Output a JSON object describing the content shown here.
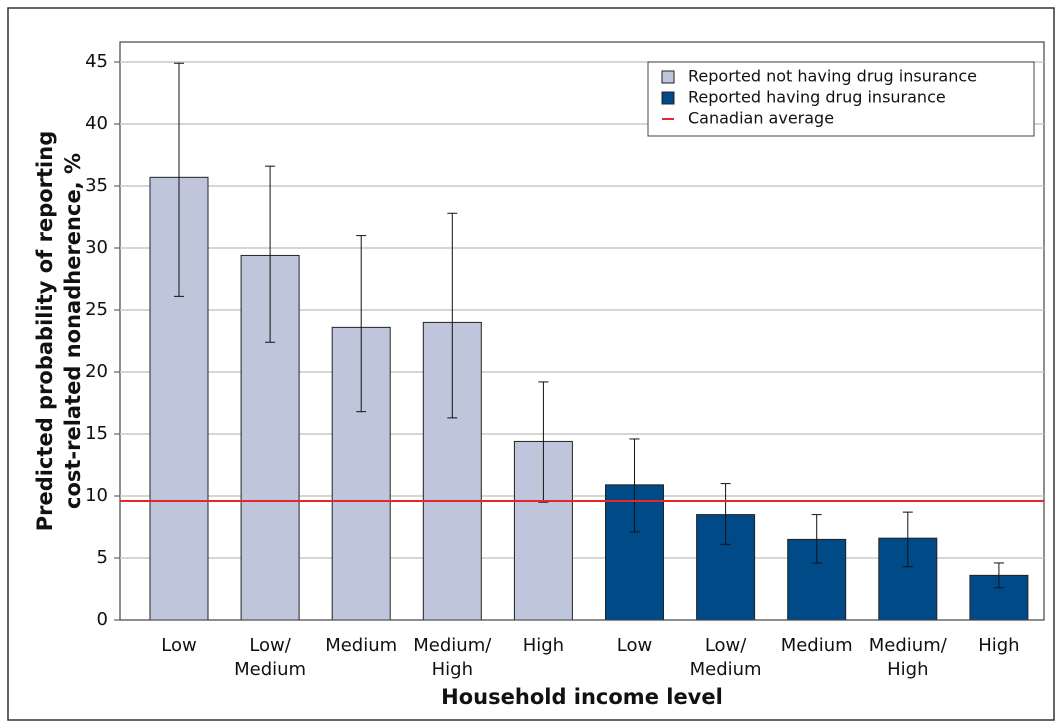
{
  "chart_data": {
    "type": "bar",
    "xlabel": "Household income level",
    "ylabel": [
      "Predicted probability of reporting",
      "cost-related nonadherence, %"
    ],
    "categories": [
      "Low",
      "Low/ Medium",
      "Medium",
      "Medium/ High",
      "High",
      "Low",
      "Low/ Medium",
      "Medium",
      "Medium/ High",
      "High"
    ],
    "series": [
      {
        "name": "Reported not having drug insurance",
        "color": "#bfc6dc",
        "values": [
          35.7,
          29.4,
          23.6,
          24.0,
          14.4,
          null,
          null,
          null,
          null,
          null
        ],
        "ci_low": [
          26.1,
          22.4,
          16.8,
          16.3,
          9.5,
          null,
          null,
          null,
          null,
          null
        ],
        "ci_high": [
          44.9,
          36.6,
          31.0,
          32.8,
          19.2,
          null,
          null,
          null,
          null,
          null
        ]
      },
      {
        "name": "Reported having drug insurance",
        "color": "#004a87",
        "values": [
          null,
          null,
          null,
          null,
          null,
          10.9,
          8.5,
          6.5,
          6.6,
          3.6
        ],
        "ci_low": [
          null,
          null,
          null,
          null,
          null,
          7.1,
          6.1,
          4.6,
          4.3,
          2.6
        ],
        "ci_high": [
          null,
          null,
          null,
          null,
          null,
          14.6,
          11.0,
          8.5,
          8.7,
          4.6
        ]
      }
    ],
    "reference_line": {
      "name": "Canadian average",
      "value": 9.6,
      "color": "#e8262a"
    },
    "ylim": [
      0,
      45
    ],
    "yticks": [
      0,
      5,
      10,
      15,
      20,
      25,
      30,
      35,
      40,
      45
    ],
    "grid": true,
    "legend": "top-right"
  }
}
